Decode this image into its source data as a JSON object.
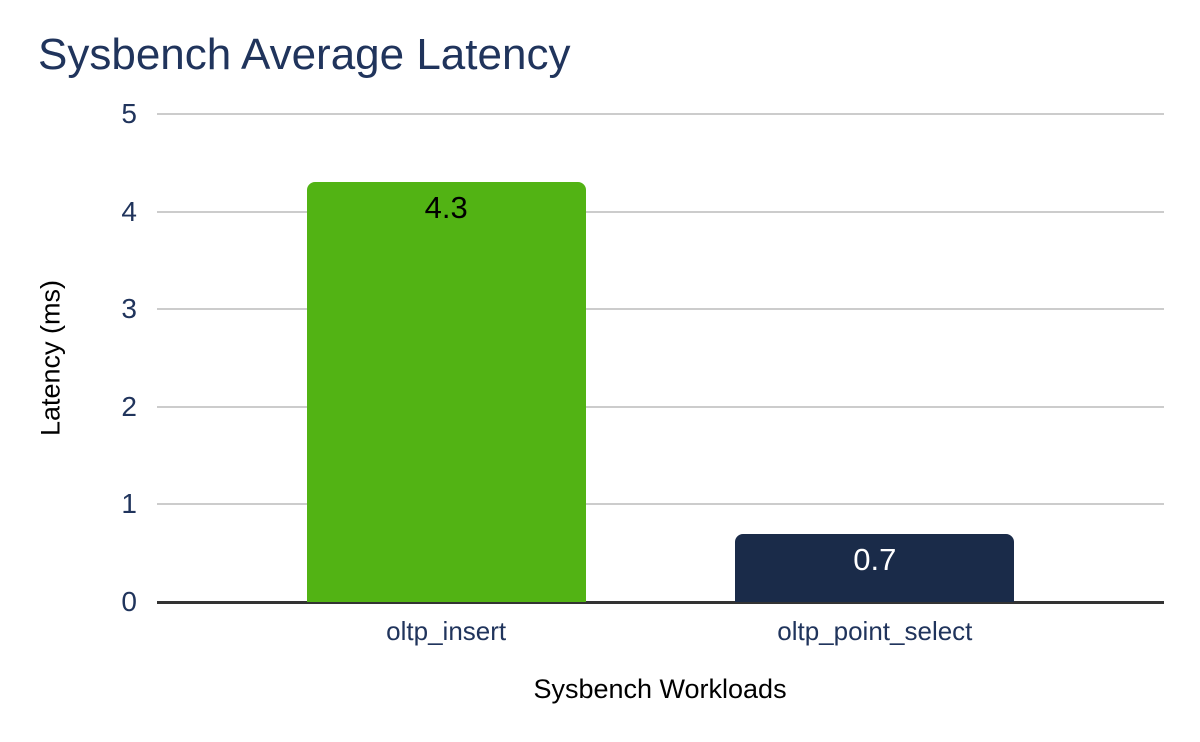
{
  "page": {
    "background": "#ffffff"
  },
  "chart_data": {
    "type": "bar",
    "title": "Sysbench Average Latency",
    "xlabel": "Sysbench Workloads",
    "ylabel": "Latency (ms)",
    "categories": [
      "oltp_insert",
      "oltp_point_select"
    ],
    "values": [
      4.3,
      0.7
    ],
    "value_labels": [
      "4.3",
      "0.7"
    ],
    "series_colors": [
      "#52b314",
      "#1a2b49"
    ],
    "value_label_colors": [
      "#000000",
      "#ffffff"
    ],
    "ylim": [
      0,
      5
    ],
    "yticks": [
      0,
      1,
      2,
      3,
      4,
      5
    ],
    "grid": true,
    "legend": "none",
    "title_color": "#20345c",
    "axis_tick_color": "#20345c",
    "category_label_color": "#20345c",
    "axis_title_color": "#000000",
    "gridline_color": "#cccccc",
    "baseline_color": "#333333"
  }
}
